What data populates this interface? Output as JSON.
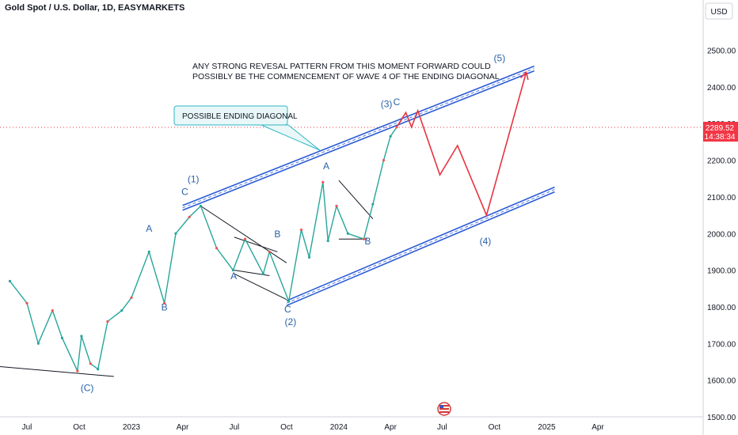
{
  "header": {
    "symbol_title": "Gold Spot / U.S. Dollar, 1D, EASYMARKETS",
    "currency": "USD"
  },
  "price_tag": {
    "price": "2289.52",
    "countdown": "14:38:34",
    "color": "#f23645"
  },
  "notes": {
    "line1": "ANY STRONG REVESAL PATTERN FROM THIS MOMENT FORWARD COULD",
    "line2": "POSSIBLY BE THE COMMENCEMENT OF WAVE 4 OF THE ENDING DIAGONAL",
    "callout": "POSSIBLE ENDING DIAGONAL"
  },
  "chart_data": {
    "type": "line",
    "y_axis": {
      "ticks": [
        1500,
        1600,
        1700,
        1800,
        1900,
        2000,
        2100,
        2200,
        2300,
        2400,
        2500
      ],
      "tick_labels": [
        "1500.00",
        "1600.00",
        "1700.00",
        "1800.00",
        "1900.00",
        "2000.00",
        "2100.00",
        "2200.00",
        "2300.00",
        "2400.00",
        "2500.00"
      ]
    },
    "x_axis": {
      "tick_labels": [
        "Jul",
        "Oct",
        "2023",
        "Apr",
        "Jul",
        "Oct",
        "2024",
        "Apr",
        "Jul",
        "Oct",
        "2025",
        "Apr"
      ],
      "tick_dates": [
        "2022-07",
        "2022-10",
        "2023-01",
        "2023-04",
        "2023-07",
        "2023-10",
        "2024-01",
        "2024-04",
        "2024-07",
        "2024-10",
        "2025-01",
        "2025-04"
      ]
    },
    "current_price": 2289.52,
    "series": [
      {
        "values": [
          [
            "2022-06-01",
            1870
          ],
          [
            "2022-07-01",
            1810
          ],
          [
            "2022-07-21",
            1700
          ],
          [
            "2022-08-15",
            1790
          ],
          [
            "2022-09-01",
            1715
          ],
          [
            "2022-09-28",
            1625
          ],
          [
            "2022-10-05",
            1720
          ],
          [
            "2022-10-21",
            1645
          ],
          [
            "2022-11-03",
            1630
          ],
          [
            "2022-11-20",
            1760
          ],
          [
            "2022-12-15",
            1790
          ],
          [
            "2023-01-01",
            1825
          ],
          [
            "2023-02-01",
            1950
          ],
          [
            "2023-02-28",
            1810
          ],
          [
            "2023-03-20",
            2000
          ],
          [
            "2023-04-13",
            2045
          ],
          [
            "2023-05-03",
            2075
          ],
          [
            "2023-05-31",
            1960
          ],
          [
            "2023-06-29",
            1900
          ],
          [
            "2023-07-20",
            1985
          ],
          [
            "2023-08-21",
            1890
          ],
          [
            "2023-09-01",
            1950
          ],
          [
            "2023-10-05",
            1815
          ],
          [
            "2023-10-27",
            2010
          ],
          [
            "2023-11-10",
            1935
          ],
          [
            "2023-12-04",
            2140
          ],
          [
            "2023-12-13",
            1980
          ],
          [
            "2023-12-28",
            2075
          ],
          [
            "2024-01-17",
            2000
          ],
          [
            "2024-02-14",
            1985
          ],
          [
            "2024-03-01",
            2080
          ],
          [
            "2024-03-20",
            2200
          ],
          [
            "2024-04-01",
            2265
          ],
          [
            "2024-04-12",
            2290
          ]
        ]
      }
    ],
    "projection": {
      "color": "#e5333f",
      "values": [
        [
          "2024-04-12",
          2290
        ],
        [
          "2024-04-28",
          2330
        ],
        [
          "2024-05-08",
          2290
        ],
        [
          "2024-05-19",
          2335
        ],
        [
          "2024-06-27",
          2160
        ],
        [
          "2024-07-28",
          2240
        ],
        [
          "2024-09-17",
          2050
        ],
        [
          "2024-11-26",
          2440
        ]
      ]
    },
    "channel": {
      "color": "#2b5cd6",
      "upper": [
        [
          "2023-04-01",
          2070
        ],
        [
          "2024-12-10",
          2450
        ]
      ],
      "lower": [
        [
          "2023-10-01",
          1810
        ],
        [
          "2025-01-15",
          2120
        ]
      ]
    },
    "trendlines": [
      {
        "values": [
          [
            "2022-01-01",
            1655
          ],
          [
            "2022-12-01",
            1610
          ]
        ]
      },
      {
        "values": [
          [
            "2023-05-03",
            2075
          ],
          [
            "2023-10-01",
            1920
          ]
        ]
      },
      {
        "values": [
          [
            "2023-07-01",
            1890
          ],
          [
            "2023-10-01",
            1820
          ]
        ]
      },
      {
        "values": [
          [
            "2023-07-01",
            1990
          ],
          [
            "2023-09-15",
            1950
          ]
        ]
      },
      {
        "values": [
          [
            "2023-07-01",
            1900
          ],
          [
            "2023-09-01",
            1885
          ]
        ]
      },
      {
        "values": [
          [
            "2024-01-01",
            2145
          ],
          [
            "2024-03-01",
            2040
          ]
        ]
      },
      {
        "values": [
          [
            "2024-01-01",
            1985
          ],
          [
            "2024-02-20",
            1985
          ]
        ]
      }
    ],
    "wave_labels": [
      {
        "text": "(C)",
        "x": "2022-10-15",
        "y": 1570
      },
      {
        "text": "A",
        "x": "2023-02-01",
        "y": 2005
      },
      {
        "text": "B",
        "x": "2023-02-28",
        "y": 1790
      },
      {
        "text": "(1)",
        "x": "2023-04-20",
        "y": 2140
      },
      {
        "text": "C",
        "x": "2023-04-05",
        "y": 2105
      },
      {
        "text": "A",
        "x": "2023-06-30",
        "y": 1875
      },
      {
        "text": "B",
        "x": "2023-09-15",
        "y": 1990
      },
      {
        "text": "C",
        "x": "2023-10-03",
        "y": 1785
      },
      {
        "text": "(2)",
        "x": "2023-10-08",
        "y": 1750
      },
      {
        "text": "A",
        "x": "2023-12-10",
        "y": 2175
      },
      {
        "text": "B",
        "x": "2024-02-21",
        "y": 1970
      },
      {
        "text": "(3)",
        "x": "2024-03-25",
        "y": 2345
      },
      {
        "text": "C",
        "x": "2024-04-12",
        "y": 2350
      },
      {
        "text": "(5)",
        "x": "2024-10-10",
        "y": 2470
      },
      {
        "text": "(4)",
        "x": "2024-09-15",
        "y": 1970
      }
    ]
  }
}
